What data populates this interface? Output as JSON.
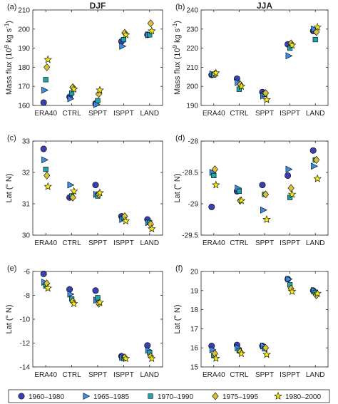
{
  "legend": {
    "placement": "bottom",
    "entries": [
      {
        "label": "1960–1980",
        "shape": "circle",
        "color": "#3b3fb0"
      },
      {
        "label": "1965–1985",
        "shape": "triangle",
        "color": "#3b8ce0"
      },
      {
        "label": "1970–1990",
        "shape": "square",
        "color": "#1fa6a8"
      },
      {
        "label": "1975–1995",
        "shape": "diamond",
        "color": "#d9c23a"
      },
      {
        "label": "1980–2000",
        "shape": "star",
        "color": "#f2ec0e"
      }
    ]
  },
  "chart_data": [
    {
      "panel": "(a)",
      "title": "DJF",
      "type": "scatter",
      "ylabel": "Mass flux (10^9 kg s^-1)",
      "categories": [
        "ERA40",
        "CTRL",
        "SPPT",
        "ISPPT",
        "LAND"
      ],
      "ylim": [
        160,
        210
      ],
      "yticks": [
        160,
        170,
        180,
        190,
        200,
        210
      ],
      "grid": false,
      "series": [
        {
          "name": "1960–1980",
          "values": [
            161.5,
            164.5,
            161.0,
            193.5,
            197.0
          ]
        },
        {
          "name": "1965–1985",
          "values": [
            168.0,
            163.5,
            160.5,
            191.0,
            197.0
          ]
        },
        {
          "name": "1970–1990",
          "values": [
            173.5,
            166.5,
            162.5,
            194.5,
            197.0
          ]
        },
        {
          "name": "1975–1995",
          "values": [
            180.0,
            169.5,
            166.0,
            198.0,
            203.0
          ]
        },
        {
          "name": "1980–2000",
          "values": [
            184.0,
            168.5,
            168.0,
            197.0,
            199.0
          ]
        }
      ]
    },
    {
      "panel": "(b)",
      "title": "JJA",
      "type": "scatter",
      "ylabel": "Mass flux (10^9 kg s^-1)",
      "categories": [
        "ERA40",
        "CTRL",
        "SPPT",
        "ISPPT",
        "LAND"
      ],
      "ylim": [
        190,
        240
      ],
      "yticks": [
        190,
        200,
        210,
        220,
        230,
        240
      ],
      "grid": false,
      "series": [
        {
          "name": "1960–1980",
          "values": [
            206.0,
            204.0,
            197.0,
            222.0,
            229.0
          ]
        },
        {
          "name": "1965–1985",
          "values": [
            206.5,
            202.0,
            195.0,
            216.0,
            230.0
          ]
        },
        {
          "name": "1970–1990",
          "values": [
            206.0,
            198.5,
            196.0,
            220.0,
            224.5
          ]
        },
        {
          "name": "1975–1995",
          "values": [
            206.5,
            201.0,
            196.5,
            222.5,
            228.5
          ]
        },
        {
          "name": "1980–2000",
          "values": [
            207.0,
            200.0,
            193.0,
            221.5,
            231.0
          ]
        }
      ]
    },
    {
      "panel": "(c)",
      "type": "scatter",
      "ylabel": "Lat (° N)",
      "categories": [
        "ERA40",
        "CTRL",
        "SPPT",
        "ISPPT",
        "LAND"
      ],
      "ylim": [
        30,
        33
      ],
      "yticks": [
        30,
        31,
        32,
        33
      ],
      "grid": false,
      "series": [
        {
          "name": "1960–1980",
          "values": [
            32.75,
            31.2,
            31.6,
            30.6,
            30.5
          ]
        },
        {
          "name": "1965–1985",
          "values": [
            32.4,
            31.6,
            31.3,
            30.5,
            30.4
          ]
        },
        {
          "name": "1970–1990",
          "values": [
            32.1,
            31.25,
            31.25,
            30.55,
            30.4
          ]
        },
        {
          "name": "1975–1995",
          "values": [
            31.9,
            31.2,
            31.3,
            30.6,
            30.35
          ]
        },
        {
          "name": "1980–2000",
          "values": [
            31.55,
            31.4,
            31.35,
            30.45,
            30.2
          ]
        }
      ]
    },
    {
      "panel": "(d)",
      "type": "scatter",
      "ylabel": "Lat (° N)",
      "categories": [
        "ERA40",
        "CTRL",
        "SPPT",
        "ISPPT",
        "LAND"
      ],
      "ylim": [
        -29.5,
        -28
      ],
      "yticks": [
        -29.5,
        -29,
        -28.5,
        -28
      ],
      "grid": false,
      "series": [
        {
          "name": "1960–1980",
          "values": [
            -29.05,
            -28.8,
            -28.7,
            -28.55,
            -28.15
          ]
        },
        {
          "name": "1965–1985",
          "values": [
            -28.5,
            -28.75,
            -29.1,
            -28.45,
            -28.4
          ]
        },
        {
          "name": "1970–1990",
          "values": [
            -28.55,
            -28.8,
            -28.85,
            -28.9,
            -28.3
          ]
        },
        {
          "name": "1975–1995",
          "values": [
            -28.45,
            -28.95,
            -28.85,
            -28.75,
            -28.3
          ]
        },
        {
          "name": "1980–2000",
          "values": [
            -28.7,
            -28.95,
            -29.25,
            -28.85,
            -28.6
          ]
        }
      ]
    },
    {
      "panel": "(e)",
      "type": "scatter",
      "ylabel": "Lat (° N)",
      "categories": [
        "ERA40",
        "CTRL",
        "SPPT",
        "ISPPT",
        "LAND"
      ],
      "ylim": [
        -14,
        -6
      ],
      "yticks": [
        -14,
        -12,
        -10,
        -8,
        -6
      ],
      "grid": false,
      "series": [
        {
          "name": "1960–1980",
          "values": [
            -6.2,
            -7.5,
            -7.6,
            -13.1,
            -12.2
          ]
        },
        {
          "name": "1965–1985",
          "values": [
            -6.9,
            -7.9,
            -8.4,
            -13.2,
            -12.6
          ]
        },
        {
          "name": "1970–1990",
          "values": [
            -7.2,
            -8.3,
            -8.2,
            -13.3,
            -12.8
          ]
        },
        {
          "name": "1975–1995",
          "values": [
            -7.0,
            -8.5,
            -8.7,
            -13.2,
            -13.1
          ]
        },
        {
          "name": "1980–2000",
          "values": [
            -7.4,
            -8.7,
            -8.6,
            -13.3,
            -13.3
          ]
        }
      ]
    },
    {
      "panel": "(f)",
      "type": "scatter",
      "ylabel": "Lat (° N)",
      "categories": [
        "ERA40",
        "CTRL",
        "SPPT",
        "ISPPT",
        "LAND"
      ],
      "ylim": [
        15,
        20
      ],
      "yticks": [
        15,
        16,
        17,
        18,
        19,
        20
      ],
      "grid": false,
      "series": [
        {
          "name": "1960–1980",
          "values": [
            16.1,
            16.15,
            16.1,
            19.6,
            19.0
          ]
        },
        {
          "name": "1965–1985",
          "values": [
            15.9,
            16.0,
            16.1,
            19.6,
            19.0
          ]
        },
        {
          "name": "1970–1990",
          "values": [
            15.6,
            15.85,
            15.95,
            19.3,
            18.9
          ]
        },
        {
          "name": "1975–1995",
          "values": [
            15.7,
            15.8,
            16.0,
            19.1,
            18.75
          ]
        },
        {
          "name": "1980–2000",
          "values": [
            15.45,
            15.7,
            15.65,
            18.95,
            18.85
          ]
        }
      ]
    }
  ]
}
